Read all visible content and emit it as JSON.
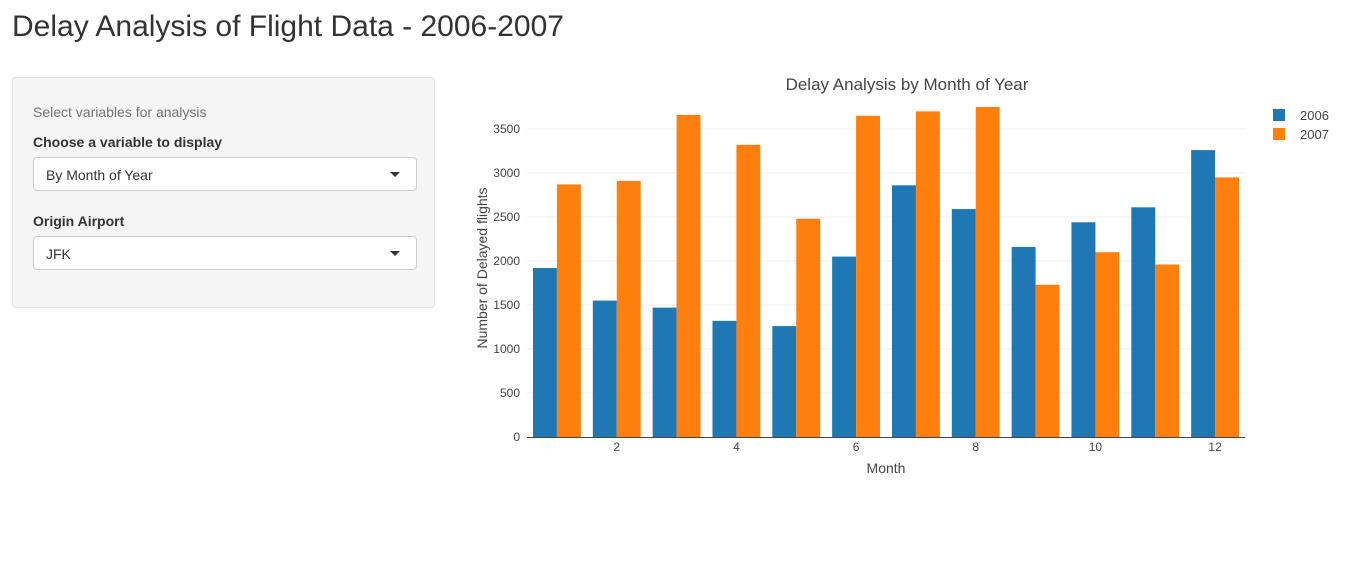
{
  "page": {
    "title": "Delay Analysis of Flight Data - 2006-2007"
  },
  "sidebar": {
    "help_text": "Select variables for analysis",
    "variable": {
      "label": "Choose a variable to display",
      "selected": "By Month of Year"
    },
    "origin": {
      "label": "Origin Airport",
      "selected": "JFK"
    }
  },
  "colors": {
    "series_2006": "#1f77b4",
    "series_2007": "#ff7f0e"
  },
  "chart_data": {
    "type": "bar",
    "title": "Delay Analysis by Month of Year",
    "xlabel": "Month",
    "ylabel": "Number of Delayed flights",
    "categories": [
      1,
      2,
      3,
      4,
      5,
      6,
      7,
      8,
      9,
      10,
      11,
      12
    ],
    "x_tick_labels": [
      "2",
      "4",
      "6",
      "8",
      "10",
      "12"
    ],
    "x_ticks": [
      2,
      4,
      6,
      8,
      10,
      12
    ],
    "y_ticks": [
      0,
      500,
      1000,
      1500,
      2000,
      2500,
      3000,
      3500
    ],
    "ylim": [
      0,
      3750
    ],
    "grid": true,
    "legend_position": "top-right",
    "series": [
      {
        "name": "2006",
        "values": [
          1920,
          1550,
          1470,
          1320,
          1260,
          2050,
          2860,
          2590,
          2160,
          2440,
          2610,
          3260
        ]
      },
      {
        "name": "2007",
        "values": [
          2870,
          2910,
          3660,
          3320,
          2480,
          3650,
          3700,
          3750,
          1730,
          2100,
          1960,
          2950
        ]
      }
    ]
  }
}
